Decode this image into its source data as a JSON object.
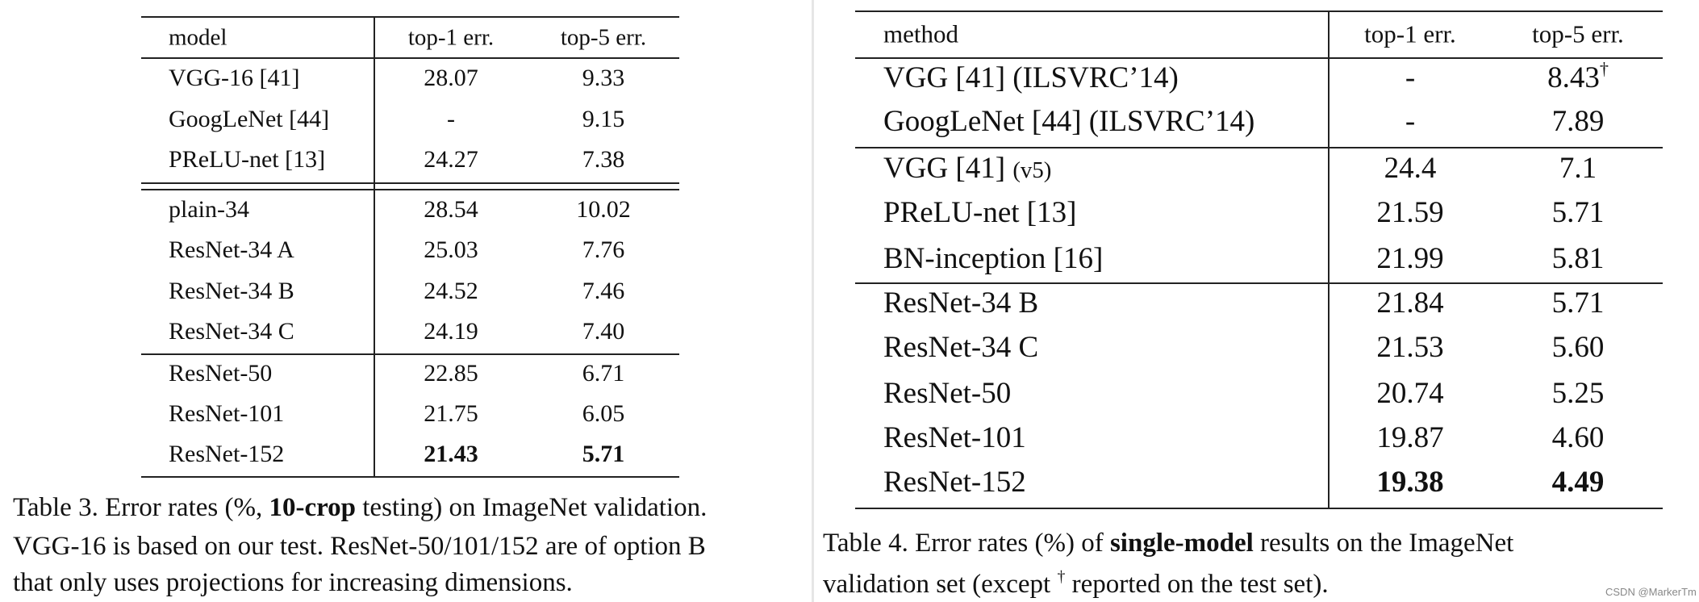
{
  "left_table": {
    "header": [
      "model",
      "top-1 err.",
      "top-5 err."
    ],
    "rows": [
      [
        "VGG-16 [41]",
        "28.07",
        "9.33"
      ],
      [
        "GoogLeNet [44]",
        "-",
        "9.15"
      ],
      [
        "PReLU-net [13]",
        "24.27",
        "7.38"
      ],
      [
        "plain-34",
        "28.54",
        "10.02"
      ],
      [
        "ResNet-34 A",
        "25.03",
        "7.76"
      ],
      [
        "ResNet-34 B",
        "24.52",
        "7.46"
      ],
      [
        "ResNet-34 C",
        "24.19",
        "7.40"
      ],
      [
        "ResNet-50",
        "22.85",
        "6.71"
      ],
      [
        "ResNet-101",
        "21.75",
        "6.05"
      ],
      [
        "ResNet-152",
        "21.43",
        "5.71"
      ]
    ]
  },
  "left_caption": {
    "lines": [
      [
        "Table 3. Error rates (%, ",
        {
          "text": "10-crop",
          "bold": true
        },
        " testing) on ImageNet validation."
      ],
      [
        "VGG-16 is based on our test. ResNet-50/101/152 are of option B"
      ],
      [
        "that only uses projections for increasing dimensions."
      ]
    ]
  },
  "right_table": {
    "header": [
      "method",
      "top-1 err.",
      "top-5 err."
    ],
    "rows": [
      [
        "VGG [41] (ILSVRC’14)",
        "-",
        {
          "text": "8.43",
          "sup": "†"
        }
      ],
      [
        "GoogLeNet [44] (ILSVRC’14)",
        "-",
        "7.89"
      ],
      [
        {
          "text": "VGG [41]",
          "small": "(v5)"
        },
        "24.4",
        "7.1"
      ],
      [
        "PReLU-net [13]",
        "21.59",
        "5.71"
      ],
      [
        "BN-inception [16]",
        "21.99",
        "5.81"
      ],
      [
        "ResNet-34 B",
        "21.84",
        "5.71"
      ],
      [
        "ResNet-34 C",
        "21.53",
        "5.60"
      ],
      [
        "ResNet-50",
        "20.74",
        "5.25"
      ],
      [
        "ResNet-101",
        "19.87",
        "4.60"
      ],
      [
        "ResNet-152",
        "19.38",
        "4.49"
      ]
    ]
  },
  "right_caption": {
    "lines": [
      [
        "Table 4. Error rates (%) of ",
        {
          "text": "single-model",
          "bold": true
        },
        " results on the ImageNet"
      ],
      [
        "validation set (except ",
        {
          "text": "†",
          "sup": true
        },
        " reported on the test set)."
      ]
    ]
  },
  "watermark": "CSDN @MarkerTm"
}
